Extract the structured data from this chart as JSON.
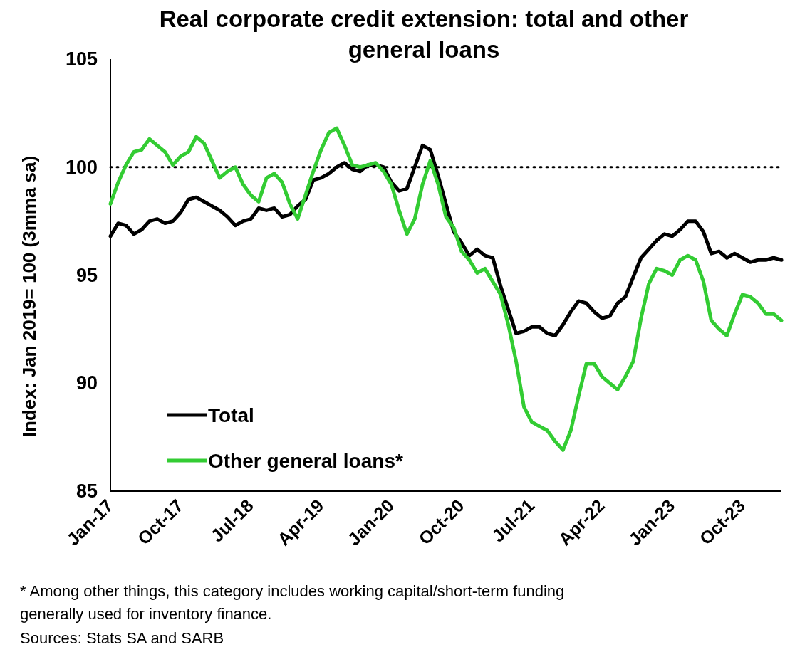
{
  "chart_data": {
    "type": "line",
    "title": "Real corporate credit extension: total and other general loans",
    "ylabel": "Index: Jan 2019= 100 (3mma sa)",
    "categories": [
      "Jan-17",
      null,
      null,
      null,
      null,
      null,
      null,
      null,
      null,
      "Oct-17",
      null,
      null,
      null,
      null,
      null,
      null,
      null,
      null,
      "Jul-18",
      null,
      null,
      null,
      null,
      null,
      null,
      null,
      null,
      "Apr-19",
      null,
      null,
      null,
      null,
      null,
      null,
      null,
      null,
      "Jan-20",
      null,
      null,
      null,
      null,
      null,
      null,
      null,
      null,
      "Oct-20",
      null,
      null,
      null,
      null,
      null,
      null,
      null,
      null,
      "Jul-21",
      null,
      null,
      null,
      null,
      null,
      null,
      null,
      null,
      "Apr-22",
      null,
      null,
      null,
      null,
      null,
      null,
      null,
      null,
      "Jan-23",
      null,
      null,
      null,
      null,
      null,
      null,
      null,
      null,
      "Oct-23",
      null,
      null,
      null,
      null,
      null
    ],
    "series": [
      {
        "name": "Total",
        "color": "#000000",
        "values": [
          96.8,
          97.4,
          97.3,
          96.9,
          97.1,
          97.5,
          97.6,
          97.4,
          97.5,
          97.9,
          98.5,
          98.6,
          98.4,
          98.2,
          98.0,
          97.7,
          97.3,
          97.5,
          97.6,
          98.1,
          98.0,
          98.1,
          97.7,
          97.8,
          98.2,
          98.5,
          99.4,
          99.5,
          99.7,
          100.0,
          100.2,
          99.9,
          99.8,
          100.1,
          100.1,
          100.0,
          99.3,
          98.9,
          99.0,
          100.0,
          101.0,
          100.8,
          99.6,
          98.3,
          97.0,
          96.5,
          95.9,
          96.2,
          95.9,
          95.8,
          94.5,
          93.4,
          92.3,
          92.4,
          92.6,
          92.6,
          92.3,
          92.2,
          92.7,
          93.3,
          93.8,
          93.7,
          93.3,
          93.0,
          93.1,
          93.7,
          94.0,
          94.9,
          95.8,
          96.2,
          96.6,
          96.9,
          96.8,
          97.1,
          97.5,
          97.5,
          97.0,
          96.0,
          96.1,
          95.8,
          96.0,
          95.8,
          95.6,
          95.7,
          95.7,
          95.8,
          95.7
        ]
      },
      {
        "name": "Other general loans*",
        "color": "#33cc33",
        "values": [
          98.3,
          99.3,
          100.1,
          100.7,
          100.8,
          101.3,
          101.0,
          100.7,
          100.1,
          100.5,
          100.7,
          101.4,
          101.1,
          100.3,
          99.5,
          99.8,
          100.0,
          99.2,
          98.7,
          98.4,
          99.5,
          99.7,
          99.3,
          98.3,
          97.6,
          98.7,
          99.8,
          100.8,
          101.6,
          101.8,
          101.0,
          100.1,
          100.0,
          100.1,
          100.2,
          99.8,
          99.2,
          98.0,
          96.9,
          97.6,
          99.2,
          100.3,
          99.2,
          97.7,
          97.2,
          96.1,
          95.7,
          95.1,
          95.3,
          94.7,
          94.1,
          92.7,
          91.0,
          88.9,
          88.2,
          88.0,
          87.8,
          87.3,
          86.9,
          87.8,
          89.4,
          90.9,
          90.9,
          90.3,
          90.0,
          89.7,
          90.3,
          91.0,
          93.0,
          94.6,
          95.3,
          95.2,
          95.0,
          95.7,
          95.9,
          95.7,
          94.7,
          92.9,
          92.5,
          92.2,
          93.2,
          94.1,
          94.0,
          93.7,
          93.2,
          93.2,
          92.9
        ]
      }
    ],
    "ylim": [
      85,
      105
    ],
    "yticks": [
      85,
      90,
      95,
      100,
      105
    ],
    "ref_lines": [
      {
        "axis": "y",
        "value": 100,
        "color": "#000000",
        "line_style": "dotted"
      }
    ],
    "legend": "bottom left",
    "grid": false,
    "annotations": [
      "* Among other things, this category includes working capital/short-term funding generally used for inventory finance.",
      "Sources: Stats SA and SARB"
    ]
  }
}
